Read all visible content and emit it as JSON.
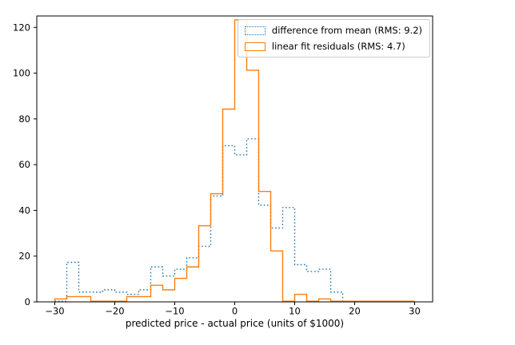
{
  "chart_data": {
    "type": "bar",
    "subtype": "step-histogram",
    "title": "",
    "xlabel": "predicted price - actual price (units of $1000)",
    "ylabel": "",
    "bin_start": -30,
    "bin_width": 2,
    "n_bins": 30,
    "xlim": [
      -33,
      33
    ],
    "ylim": [
      0,
      125
    ],
    "grid": false,
    "legend_position": "upper right",
    "x_ticks": [
      {
        "value": -30,
        "label": "−30"
      },
      {
        "value": -20,
        "label": "−20"
      },
      {
        "value": -10,
        "label": "−10"
      },
      {
        "value": 0,
        "label": "0"
      },
      {
        "value": 10,
        "label": "10"
      },
      {
        "value": 20,
        "label": "20"
      },
      {
        "value": 30,
        "label": "30"
      }
    ],
    "y_ticks": [
      {
        "value": 0,
        "label": "0"
      },
      {
        "value": 20,
        "label": "20"
      },
      {
        "value": 40,
        "label": "40"
      },
      {
        "value": 60,
        "label": "60"
      },
      {
        "value": 80,
        "label": "80"
      },
      {
        "value": 100,
        "label": "100"
      },
      {
        "value": 120,
        "label": "120"
      }
    ],
    "series": [
      {
        "label": "difference from mean (RMS: 9.2)",
        "color": "#1f77b4",
        "style": "dotted",
        "values": [
          0,
          17,
          4,
          4,
          5,
          4,
          3,
          5,
          15,
          11,
          14,
          19,
          24,
          46,
          68,
          64,
          71,
          42,
          32,
          41,
          16,
          13,
          14,
          4,
          0,
          0,
          0,
          0,
          0,
          0
        ]
      },
      {
        "label": "linear fit residuals (RMS: 4.7)",
        "color": "#ff7f0e",
        "style": "solid",
        "values": [
          1,
          2,
          2,
          0,
          0,
          0,
          2,
          2,
          7,
          5,
          10,
          15,
          33,
          47,
          84,
          123,
          101,
          48,
          22,
          0,
          3,
          0,
          1,
          0,
          0,
          0,
          0,
          0,
          0,
          0
        ]
      }
    ],
    "frame_color": "#000000",
    "tick_color": "#000000"
  }
}
